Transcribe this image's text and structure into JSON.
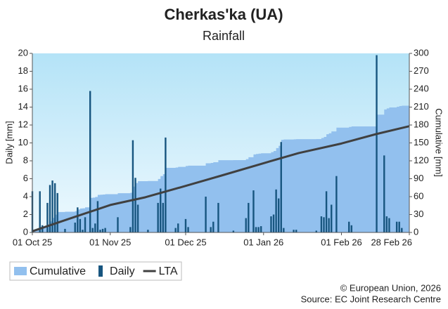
{
  "chart_data": {
    "type": "bar",
    "title": "Cherkas'ka (UA)",
    "subtitle": "Rainfall",
    "y_label": "Daily [mm]",
    "y2_label": "Cumulative [mm]",
    "footer": [
      "© European Union, 2026",
      "Source: EC Joint Research Centre"
    ],
    "xlim": [
      "2025-10-01",
      "2026-02-28"
    ],
    "xticks": [
      {
        "value": "2025-10-01",
        "label": "01 Oct 25"
      },
      {
        "value": "2025-11-01",
        "label": "01 Nov 25"
      },
      {
        "value": "2025-12-01",
        "label": "01 Dec 25"
      },
      {
        "value": "2026-01-01",
        "label": "01 Jan 26"
      },
      {
        "value": "2026-02-01",
        "label": "01 Feb 26"
      },
      {
        "value": "2026-02-28",
        "label": "28 Feb 26"
      }
    ],
    "ylim": [
      0,
      20
    ],
    "yticks": [
      0,
      2,
      4,
      6,
      8,
      10,
      12,
      14,
      16,
      18,
      20
    ],
    "y2lim": [
      0,
      300
    ],
    "y2ticks": [
      0,
      30,
      60,
      90,
      120,
      150,
      180,
      210,
      240,
      270,
      300
    ],
    "grid": false,
    "legend": "bottom-left",
    "x": [
      "2025-10-01",
      "2025-10-04",
      "2025-10-05",
      "2025-10-07",
      "2025-10-08",
      "2025-10-09",
      "2025-10-10",
      "2025-10-11",
      "2025-10-14",
      "2025-10-18",
      "2025-10-19",
      "2025-10-20",
      "2025-10-21",
      "2025-10-22",
      "2025-10-24",
      "2025-10-25",
      "2025-10-26",
      "2025-10-27",
      "2025-10-28",
      "2025-10-29",
      "2025-10-30",
      "2025-11-04",
      "2025-11-09",
      "2025-11-10",
      "2025-11-11",
      "2025-11-12",
      "2025-11-16",
      "2025-11-20",
      "2025-11-21",
      "2025-11-22",
      "2025-11-23",
      "2025-11-27",
      "2025-11-28",
      "2025-12-01",
      "2025-12-02",
      "2025-12-09",
      "2025-12-11",
      "2025-12-12",
      "2025-12-14",
      "2025-12-20",
      "2025-12-25",
      "2025-12-26",
      "2025-12-28",
      "2025-12-29",
      "2025-12-30",
      "2025-12-31",
      "2026-01-04",
      "2026-01-05",
      "2026-01-06",
      "2026-01-07",
      "2026-01-08",
      "2026-01-09",
      "2026-01-13",
      "2026-01-14",
      "2026-01-22",
      "2026-01-24",
      "2026-01-25",
      "2026-01-26",
      "2026-01-27",
      "2026-01-28",
      "2026-01-30",
      "2026-02-04",
      "2026-02-05",
      "2026-02-15",
      "2026-02-18",
      "2026-02-19",
      "2026-02-20",
      "2026-02-23",
      "2026-02-24",
      "2026-02-25"
    ],
    "series": [
      {
        "name": "Cumulative",
        "type": "area",
        "axis": "y2",
        "color": "#92c0ee",
        "values": [
          4.6,
          9.2,
          10.0,
          13.3,
          18.6,
          24.4,
          29.9,
          34.3,
          34.7,
          35.8,
          38.6,
          40.1,
          40.4,
          42.1,
          57.9,
          58.4,
          59.4,
          62.9,
          63.2,
          63.6,
          64.1,
          65.8,
          66.4,
          76.7,
          82.8,
          85.9,
          86.2,
          89.5,
          94.4,
          97.7,
          108.3,
          108.8,
          109.8,
          111.3,
          111.9,
          115.9,
          116.5,
          117.7,
          121.0,
          121.2,
          122.8,
          126.1,
          130.8,
          131.4,
          132.0,
          132.7,
          134.5,
          136.5,
          141.3,
          145.1,
          155.2,
          155.7,
          156.0,
          156.3,
          156.5,
          158.3,
          160.0,
          164.6,
          166.2,
          169.3,
          175.6,
          176.8,
          177.6,
          197.4,
          206.0,
          207.8,
          209.4,
          210.6,
          211.8,
          212.3
        ]
      },
      {
        "name": "Daily",
        "type": "bar",
        "axis": "y",
        "color": "#17557f",
        "values": [
          4.6,
          4.6,
          0.8,
          3.3,
          5.3,
          5.8,
          5.5,
          4.4,
          0.4,
          1.1,
          2.8,
          1.5,
          0.3,
          1.7,
          15.8,
          0.5,
          1.0,
          3.5,
          0.3,
          0.4,
          0.5,
          1.7,
          0.6,
          10.3,
          6.1,
          3.1,
          0.3,
          3.3,
          4.9,
          3.3,
          10.6,
          0.5,
          1.0,
          1.5,
          0.6,
          4.0,
          0.6,
          1.2,
          3.3,
          0.2,
          1.6,
          3.3,
          4.7,
          0.6,
          0.6,
          0.7,
          1.8,
          2.0,
          4.8,
          3.8,
          10.1,
          0.5,
          0.3,
          0.3,
          0.2,
          1.8,
          1.7,
          4.6,
          1.6,
          3.1,
          6.3,
          1.2,
          0.8,
          19.8,
          8.6,
          1.8,
          1.6,
          1.2,
          1.2,
          0.5
        ]
      },
      {
        "name": "LTA",
        "type": "line",
        "axis": "y2",
        "color": "#404040",
        "x": [
          "2025-10-01",
          "2025-10-15",
          "2025-11-01",
          "2025-11-15",
          "2025-12-01",
          "2025-12-15",
          "2026-01-01",
          "2026-01-15",
          "2026-02-01",
          "2026-02-15",
          "2026-02-28"
        ],
        "values": [
          2,
          22,
          46,
          59,
          78,
          95,
          116,
          133,
          149,
          165,
          178
        ]
      }
    ]
  }
}
